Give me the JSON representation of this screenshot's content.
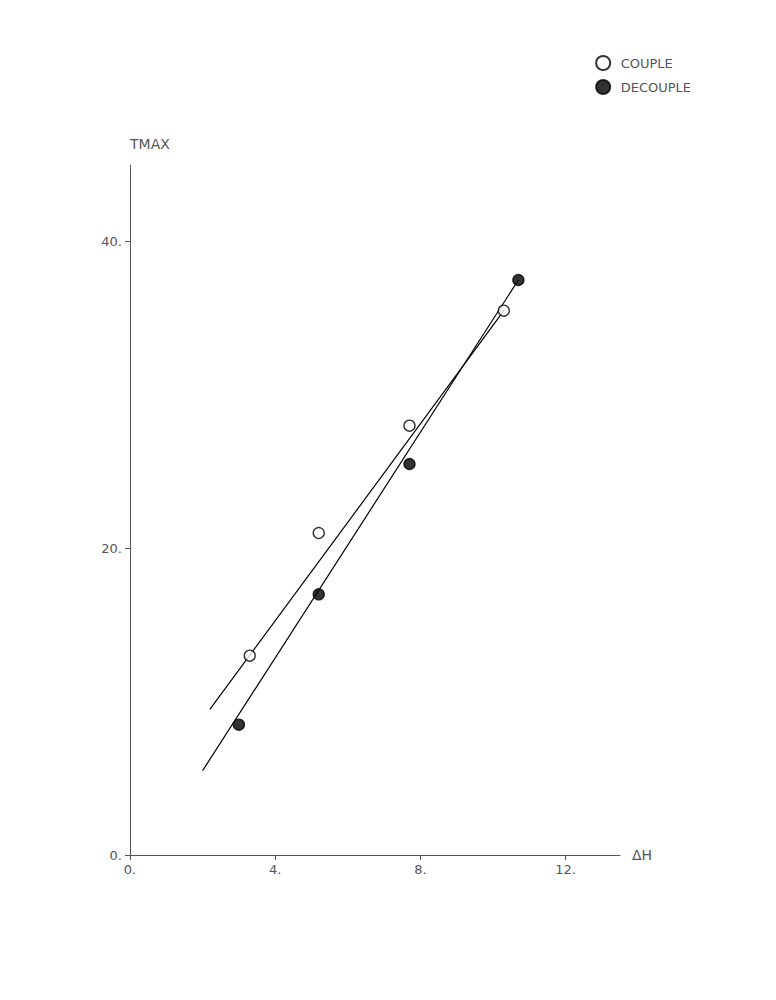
{
  "chart_data": {
    "type": "scatter",
    "xlabel": "ΔH",
    "ylabel": "TMAX",
    "xlim": [
      0,
      13.5
    ],
    "ylim": [
      0,
      45
    ],
    "xticks": [
      {
        "value": 0,
        "label": "0."
      },
      {
        "value": 4,
        "label": "4."
      },
      {
        "value": 8,
        "label": "8."
      },
      {
        "value": 12,
        "label": "12."
      }
    ],
    "yticks": [
      {
        "value": 0,
        "label": "0."
      },
      {
        "value": 20,
        "label": "20."
      },
      {
        "value": 40,
        "label": "40."
      }
    ],
    "grid": false,
    "legend": "upper right",
    "series": [
      {
        "type": "line",
        "color": "#000000",
        "x": [
          2.2,
          10.3
        ],
        "values": [
          9.5,
          35.5
        ]
      },
      {
        "type": "line",
        "color": "#000000",
        "x": [
          2.0,
          10.7
        ],
        "values": [
          5.5,
          37.5
        ]
      },
      {
        "name": "COUPLE",
        "type": "scatter",
        "marker": "open_circle",
        "color": "#000000",
        "x": [
          3.3,
          5.2,
          7.7,
          10.3
        ],
        "values": [
          13.0,
          21.0,
          28.0,
          35.5
        ]
      },
      {
        "name": "DECOUPLE",
        "type": "scatter",
        "marker": "circle",
        "color": "#000000",
        "x": [
          3.0,
          5.2,
          7.7,
          10.7
        ],
        "values": [
          8.5,
          17.0,
          25.5,
          37.5
        ]
      }
    ]
  }
}
